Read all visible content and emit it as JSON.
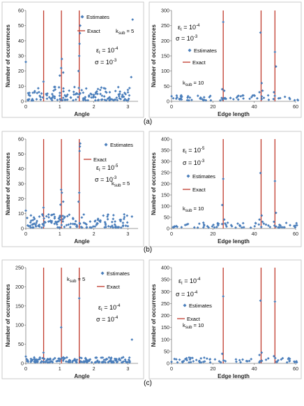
{
  "row_labels": [
    "(a)",
    "(b)",
    "(c)"
  ],
  "chart_data": [
    {
      "id": "a-angle",
      "type": "scatter",
      "xlabel": "Angle",
      "ylabel": "Number of occurrences",
      "xlim": [
        0,
        3.3
      ],
      "ylim": [
        0,
        60
      ],
      "xticks": [
        0,
        1,
        2,
        3
      ],
      "yticks": [
        0,
        10,
        20,
        30,
        40,
        50,
        60
      ],
      "legend": {
        "estimates": "Estimates",
        "exact": "Exact"
      },
      "annotations": {
        "ksub": "k",
        "ksub_sub": "sub",
        "ksub_val": " = 5",
        "eps": "ε",
        "eps_sub": "I",
        "eps_val": " = 10",
        "eps_exp": "-4",
        "sigma": "σ = 10",
        "sigma_exp": "-3"
      },
      "exact_x": [
        0.524,
        1.047,
        1.571
      ],
      "highlight": [
        [
          0.0,
          26
        ],
        [
          0.52,
          13
        ],
        [
          1.0,
          17
        ],
        [
          1.04,
          22
        ],
        [
          1.06,
          28
        ],
        [
          1.1,
          19
        ],
        [
          1.55,
          20
        ],
        [
          1.57,
          30
        ],
        [
          1.58,
          38
        ],
        [
          1.59,
          45
        ],
        [
          1.6,
          50
        ],
        [
          3.1,
          16
        ],
        [
          3.14,
          54
        ]
      ],
      "seed": 11,
      "noise_n": 150,
      "noise_max": 9
    },
    {
      "id": "a-edge",
      "type": "scatter",
      "xlabel": "Edge length",
      "ylabel": "Number of occurrences",
      "xlim": [
        0,
        60
      ],
      "ylim": [
        0,
        300
      ],
      "xticks": [
        0,
        20,
        40,
        60
      ],
      "yticks": [
        0,
        50,
        100,
        150,
        200,
        250,
        300
      ],
      "legend": {
        "estimates": "Estimates",
        "exact": "Exact"
      },
      "annotations": {
        "ksub": "k",
        "ksub_sub": "sub",
        "ksub_val": " = 10",
        "eps": "ε",
        "eps_sub": "I",
        "eps_val": " = 10",
        "eps_exp": "-4",
        "sigma": "σ = 10",
        "sigma_exp": "-3"
      },
      "exact_x": [
        25,
        43.3,
        50
      ],
      "highlight": [
        [
          24.5,
          40
        ],
        [
          25,
          262
        ],
        [
          25.5,
          35
        ],
        [
          42.5,
          30
        ],
        [
          43,
          227
        ],
        [
          43.6,
          60
        ],
        [
          44,
          35
        ],
        [
          49.5,
          30
        ],
        [
          50,
          163
        ],
        [
          50.5,
          115
        ]
      ],
      "seed": 23,
      "noise_n": 70,
      "noise_max": 18
    },
    {
      "id": "b-angle",
      "type": "scatter",
      "xlabel": "Angle",
      "ylabel": "Number of occurrences",
      "xlim": [
        0,
        3.3
      ],
      "ylim": [
        0,
        60
      ],
      "xticks": [
        0,
        1,
        2,
        3
      ],
      "yticks": [
        0,
        10,
        20,
        30,
        40,
        50,
        60
      ],
      "legend": {
        "estimates": "Estimates",
        "exact": "Exact"
      },
      "annotations": {
        "ksub": "k",
        "ksub_sub": "sub",
        "ksub_val": " = 5",
        "eps": "ε",
        "eps_sub": "I",
        "eps_val": " = 10",
        "eps_exp": "-5",
        "sigma": "σ = 10",
        "sigma_exp": "-3"
      },
      "exact_x": [
        0.524,
        1.047,
        1.571
      ],
      "highlight": [
        [
          0.0,
          12
        ],
        [
          0.52,
          14
        ],
        [
          1.02,
          16
        ],
        [
          1.04,
          26
        ],
        [
          1.06,
          24
        ],
        [
          1.1,
          18
        ],
        [
          1.55,
          18
        ],
        [
          1.57,
          24
        ],
        [
          1.58,
          52
        ],
        [
          1.59,
          55
        ],
        [
          1.6,
          57
        ],
        [
          3.12,
          8
        ]
      ],
      "seed": 37,
      "noise_n": 150,
      "noise_max": 9
    },
    {
      "id": "b-edge",
      "type": "scatter",
      "xlabel": "Edge length",
      "ylabel": "Number of occurrences",
      "xlim": [
        0,
        60
      ],
      "ylim": [
        0,
        400
      ],
      "xticks": [
        0,
        20,
        40,
        60
      ],
      "yticks": [
        0,
        50,
        100,
        150,
        200,
        250,
        300,
        350,
        400
      ],
      "legend": {
        "estimates": "Estimates",
        "exact": "Exact"
      },
      "annotations": {
        "ksub": "k",
        "ksub_sub": "sub",
        "ksub_val": " = 10",
        "eps": "ε",
        "eps_sub": "I",
        "eps_val": " = 10",
        "eps_exp": "-5",
        "sigma": "σ = 10",
        "sigma_exp": "-3"
      },
      "exact_x": [
        25,
        43.3,
        50
      ],
      "highlight": [
        [
          24.5,
          105
        ],
        [
          25,
          222
        ],
        [
          25.5,
          40
        ],
        [
          42.5,
          40
        ],
        [
          43,
          248
        ],
        [
          43.6,
          58
        ],
        [
          44,
          30
        ],
        [
          49.5,
          30
        ],
        [
          50,
          212
        ],
        [
          50.5,
          70
        ]
      ],
      "seed": 41,
      "noise_n": 70,
      "noise_max": 22
    },
    {
      "id": "c-angle",
      "type": "scatter",
      "xlabel": "Angle",
      "ylabel": "Number of occurrences",
      "xlim": [
        0,
        3.3
      ],
      "ylim": [
        0,
        250
      ],
      "xticks": [
        0,
        1,
        2,
        3
      ],
      "yticks": [
        0,
        50,
        100,
        150,
        200,
        250
      ],
      "legend": {
        "estimates": "Estimates",
        "exact": "Exact"
      },
      "annotations": {
        "ksub": "k",
        "ksub_sub": "sub",
        "ksub_val": " = 5",
        "eps": "ε",
        "eps_sub": "I",
        "eps_val": " = 10",
        "eps_exp": "-4",
        "sigma": "σ = 10",
        "sigma_exp": "-4"
      },
      "exact_x": [
        0.524,
        1.047,
        1.571
      ],
      "highlight": [
        [
          0.0,
          18
        ],
        [
          0.52,
          28
        ],
        [
          1.04,
          94
        ],
        [
          1.57,
          170
        ],
        [
          3.12,
          62
        ]
      ],
      "seed": 53,
      "noise_n": 160,
      "noise_max": 14
    },
    {
      "id": "c-edge",
      "type": "scatter",
      "xlabel": "Edge length",
      "ylabel": "Number of occurrences",
      "xlim": [
        0,
        60
      ],
      "ylim": [
        0,
        400
      ],
      "xticks": [
        0,
        20,
        40,
        60
      ],
      "yticks": [
        0,
        50,
        100,
        150,
        200,
        250,
        300,
        350,
        400
      ],
      "legend": {
        "estimates": "Estimates",
        "exact": "Exact"
      },
      "annotations": {
        "ksub": "k",
        "ksub_sub": "sub",
        "ksub_val": " = 10",
        "eps": "ε",
        "eps_sub": "I",
        "eps_val": " = 10",
        "eps_exp": "-4",
        "sigma": "σ = 10",
        "sigma_exp": "-4"
      },
      "exact_x": [
        25,
        43.3,
        50
      ],
      "highlight": [
        [
          24.5,
          40
        ],
        [
          25,
          280
        ],
        [
          42.5,
          35
        ],
        [
          43,
          262
        ],
        [
          43.6,
          45
        ],
        [
          49.5,
          30
        ],
        [
          50,
          258
        ]
      ],
      "seed": 67,
      "noise_n": 70,
      "noise_max": 22
    }
  ]
}
